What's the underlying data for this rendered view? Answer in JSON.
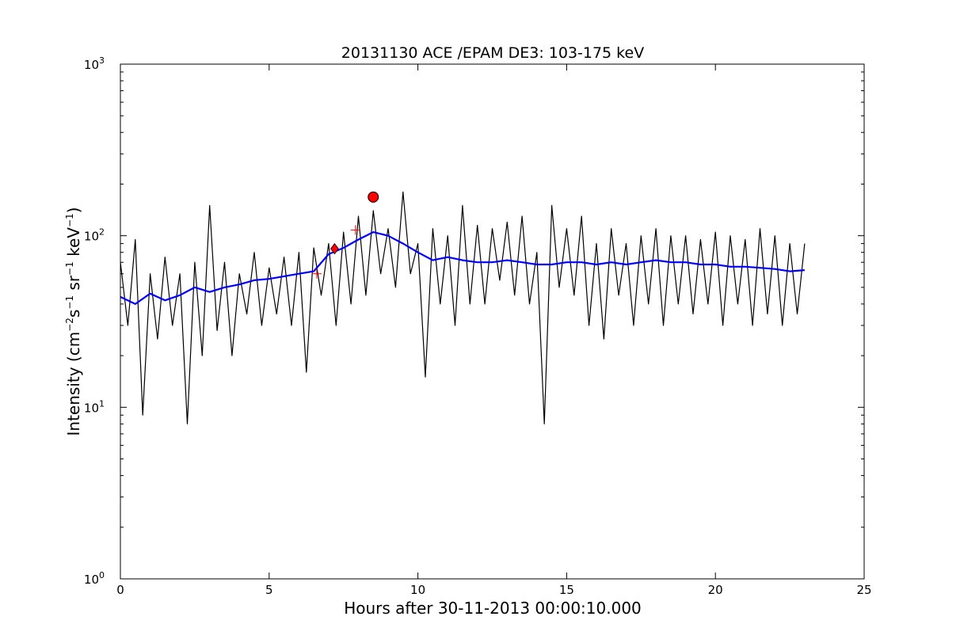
{
  "chart_data": {
    "type": "line",
    "title": "20131130 ACE /EPAM DE3: 103-175 keV",
    "xlabel": "Hours after 30-11-2013 00:00:10.000",
    "ylabel": {
      "prefix": "Intensity (cm",
      "exp1": "−2",
      "part2": "s",
      "exp2": "−1",
      "part3": " sr",
      "exp3": "−1",
      "part4": " keV",
      "exp4": "−1",
      "suffix": ")"
    },
    "xlim": [
      0,
      25
    ],
    "ylim": [
      1,
      1000
    ],
    "yscale": "log",
    "x_ticks": [
      {
        "value": 0,
        "label": "0"
      },
      {
        "value": 5,
        "label": "5"
      },
      {
        "value": 10,
        "label": "10"
      },
      {
        "value": 15,
        "label": "15"
      },
      {
        "value": 20,
        "label": "20"
      },
      {
        "value": 25,
        "label": "25"
      }
    ],
    "y_ticks": [
      {
        "value": 1,
        "base": "10",
        "exp": "0"
      },
      {
        "value": 10,
        "base": "10",
        "exp": "1"
      },
      {
        "value": 100,
        "base": "10",
        "exp": "2"
      },
      {
        "value": 1000,
        "base": "10",
        "exp": "3"
      }
    ],
    "grid": false,
    "series": [
      {
        "color": "#000000",
        "x": [
          0.0,
          0.25,
          0.5,
          0.75,
          1.0,
          1.25,
          1.5,
          1.75,
          2.0,
          2.25,
          2.5,
          2.75,
          3.0,
          3.25,
          3.5,
          3.75,
          4.0,
          4.25,
          4.5,
          4.75,
          5.0,
          5.25,
          5.5,
          5.75,
          6.0,
          6.25,
          6.5,
          6.75,
          7.0,
          7.25,
          7.5,
          7.75,
          8.0,
          8.25,
          8.5,
          8.75,
          9.0,
          9.25,
          9.5,
          9.75,
          10.0,
          10.25,
          10.5,
          10.75,
          11.0,
          11.25,
          11.5,
          11.75,
          12.0,
          12.25,
          12.5,
          12.75,
          13.0,
          13.25,
          13.5,
          13.75,
          14.0,
          14.25,
          14.5,
          14.75,
          15.0,
          15.25,
          15.5,
          15.75,
          16.0,
          16.25,
          16.5,
          16.75,
          17.0,
          17.25,
          17.5,
          17.75,
          18.0,
          18.25,
          18.5,
          18.75,
          19.0,
          19.25,
          19.5,
          19.75,
          20.0,
          20.25,
          20.5,
          20.75,
          21.0,
          21.25,
          21.5,
          21.75,
          22.0,
          22.25,
          22.5,
          22.75,
          23.0
        ],
        "y": [
          70,
          30,
          95,
          9,
          60,
          25,
          75,
          30,
          60,
          8,
          70,
          20,
          150,
          28,
          70,
          20,
          60,
          35,
          80,
          30,
          65,
          35,
          75,
          30,
          80,
          16,
          85,
          45,
          90,
          30,
          105,
          40,
          130,
          45,
          140,
          60,
          110,
          50,
          180,
          60,
          90,
          15,
          110,
          40,
          100,
          30,
          150,
          40,
          115,
          40,
          110,
          55,
          120,
          45,
          130,
          40,
          80,
          8,
          150,
          50,
          110,
          45,
          130,
          30,
          90,
          25,
          110,
          45,
          90,
          30,
          100,
          40,
          110,
          30,
          100,
          40,
          100,
          35,
          95,
          40,
          105,
          30,
          100,
          40,
          95,
          30,
          110,
          35,
          100,
          30,
          90,
          35,
          90
        ]
      },
      {
        "color": "#0000ff",
        "x": [
          0.0,
          0.5,
          1.0,
          1.5,
          2.0,
          2.5,
          3.0,
          3.5,
          4.0,
          4.5,
          5.0,
          5.5,
          6.0,
          6.5,
          7.0,
          7.5,
          8.0,
          8.5,
          9.0,
          9.5,
          10.0,
          10.5,
          11.0,
          11.5,
          12.0,
          12.5,
          13.0,
          13.5,
          14.0,
          14.5,
          15.0,
          15.5,
          16.0,
          16.5,
          17.0,
          17.5,
          18.0,
          18.5,
          19.0,
          19.5,
          20.0,
          20.5,
          21.0,
          21.5,
          22.0,
          22.5,
          23.0
        ],
        "y": [
          44,
          40,
          46,
          42,
          45,
          50,
          47,
          50,
          52,
          55,
          56,
          58,
          60,
          62,
          78,
          85,
          95,
          105,
          100,
          90,
          80,
          72,
          75,
          72,
          70,
          70,
          72,
          70,
          68,
          68,
          70,
          70,
          68,
          70,
          68,
          70,
          72,
          70,
          70,
          68,
          68,
          66,
          66,
          65,
          64,
          62,
          63
        ]
      }
    ],
    "markers": [
      {
        "shape": "circle",
        "x": 8.5,
        "y": 168,
        "color": "#ff0000"
      },
      {
        "shape": "diamond",
        "x": 7.2,
        "y": 84,
        "color": "#ff0000"
      },
      {
        "shape": "plus",
        "x": 6.6,
        "y": 60,
        "color": "#ff0000"
      },
      {
        "shape": "plus",
        "x": 7.9,
        "y": 108,
        "color": "#ff0000"
      }
    ]
  }
}
